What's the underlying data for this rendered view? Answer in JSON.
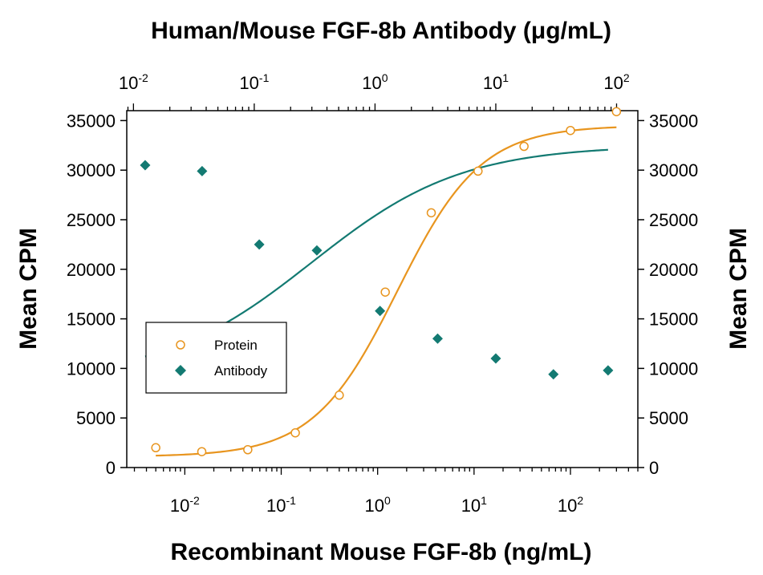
{
  "chart_data": {
    "type": "scatter",
    "top_title": "Human/Mouse FGF-8b Antibody (μg/mL)",
    "xlabel": "Recombinant Mouse FGF-8b (ng/mL)",
    "ylabel_left": "Mean CPM",
    "ylabel_right": "Mean CPM",
    "x_scale": "log",
    "bottom_xlim": [
      0.0025,
      500
    ],
    "top_xlim": [
      0.0088,
      150
    ],
    "ylim": [
      0,
      36000
    ],
    "yticks": [
      0,
      5000,
      10000,
      15000,
      20000,
      25000,
      30000,
      35000
    ],
    "bottom_xticks": [
      {
        "base": "10",
        "exp": "-2",
        "value": 0.01
      },
      {
        "base": "10",
        "exp": "-1",
        "value": 0.1
      },
      {
        "base": "10",
        "exp": "0",
        "value": 1
      },
      {
        "base": "10",
        "exp": "1",
        "value": 10
      },
      {
        "base": "10",
        "exp": "2",
        "value": 100
      }
    ],
    "top_xticks": [
      {
        "base": "10",
        "exp": "-2",
        "value": 0.01
      },
      {
        "base": "10",
        "exp": "-1",
        "value": 0.1
      },
      {
        "base": "10",
        "exp": "0",
        "value": 1
      },
      {
        "base": "10",
        "exp": "1",
        "value": 10
      },
      {
        "base": "10",
        "exp": "2",
        "value": 100
      }
    ],
    "legend": {
      "position": "middle-left",
      "entries": [
        "Protein",
        "Antibody"
      ]
    },
    "grid": false,
    "series": [
      {
        "name": "Protein",
        "color": "#E8951F",
        "marker": "open-circle",
        "axis": "bottom",
        "x": [
          0.005,
          0.015,
          0.045,
          0.14,
          0.4,
          1.2,
          3.6,
          11,
          33,
          100,
          300
        ],
        "y": [
          2000,
          1600,
          1800,
          3500,
          7300,
          17700,
          25700,
          29900,
          32400,
          34000,
          35900
        ],
        "fit": {
          "bottom": 1100,
          "top": 34500,
          "ec50": 1.6,
          "hill": 1.0
        }
      },
      {
        "name": "Antibody",
        "color": "#137A72",
        "marker": "filled-diamond",
        "axis": "top",
        "x": [
          0.0125,
          0.037,
          0.11,
          0.33,
          1.1,
          3.3,
          10,
          30,
          85
        ],
        "y": [
          30500,
          29900,
          22500,
          21900,
          15800,
          13000,
          11000,
          9400,
          9800
        ],
        "fit": {
          "bottom": 8900,
          "top": 32500,
          "ec50": 0.3,
          "hill": 0.7
        }
      }
    ]
  }
}
